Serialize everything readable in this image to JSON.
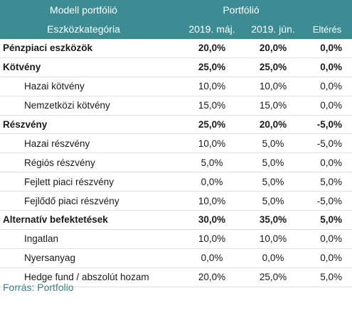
{
  "header": {
    "model_label": "Modell portfólió",
    "portfolio_label": "Portfólió",
    "category_label": "Eszközkategória",
    "col_may": "2019. máj.",
    "col_jun": "2019. jún.",
    "col_diff": "Eltérés"
  },
  "rows": [
    {
      "name": "Pénzpiaci eszközök",
      "may": "20,0%",
      "jun": "20,0%",
      "diff": "0,0%"
    },
    {
      "name": "Kötvény",
      "may": "25,0%",
      "jun": "25,0%",
      "diff": "0,0%"
    },
    {
      "name": "Hazai kötvény",
      "may": "10,0%",
      "jun": "10,0%",
      "diff": "0,0%"
    },
    {
      "name": "Nemzetközi kötvény",
      "may": "15,0%",
      "jun": "15,0%",
      "diff": "0,0%"
    },
    {
      "name": "Részvény",
      "may": "25,0%",
      "jun": "20,0%",
      "diff": "-5,0%"
    },
    {
      "name": "Hazai részvény",
      "may": "10,0%",
      "jun": "5,0%",
      "diff": "-5,0%"
    },
    {
      "name": "Régiós részvény",
      "may": "5,0%",
      "jun": "5,0%",
      "diff": "0,0%"
    },
    {
      "name": "Fejlett piaci részvény",
      "may": "0,0%",
      "jun": "5,0%",
      "diff": "5,0%"
    },
    {
      "name": "Fejlődő piaci részvény",
      "may": "10,0%",
      "jun": "5,0%",
      "diff": "-5,0%"
    },
    {
      "name": "Alternatív befektetések",
      "may": "30,0%",
      "jun": "35,0%",
      "diff": "5,0%"
    },
    {
      "name": "Ingatlan",
      "may": "10,0%",
      "jun": "10,0%",
      "diff": "0,0%"
    },
    {
      "name": "Nyersanyag",
      "may": "0,0%",
      "jun": "0,0%",
      "diff": "0,0%"
    },
    {
      "name": "Hedge fund / abszolút hozam",
      "may": "20,0%",
      "jun": "25,0%",
      "diff": "5,0%"
    }
  ],
  "source": "Forrás: Portfolio",
  "colors": {
    "header_bg": "#3d8c93",
    "source_text": "#3d7f86"
  }
}
